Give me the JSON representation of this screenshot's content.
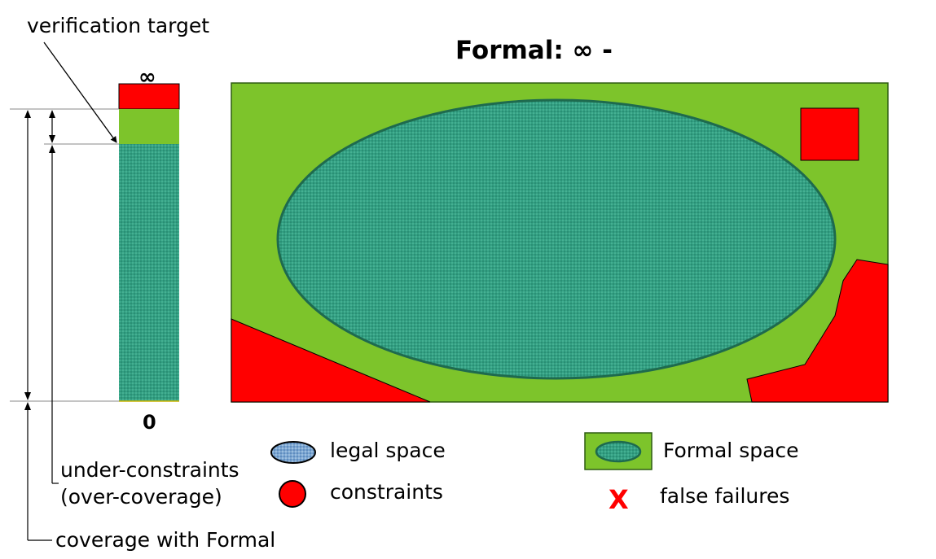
{
  "title": "Formal: ∞ -",
  "bar": {
    "top_label": "∞",
    "bottom_label": "0"
  },
  "annotations": {
    "verification_target": "verification target",
    "under_constraints_line1": "under-constraints",
    "under_constraints_line2": "(over-coverage)",
    "coverage_with_formal": "coverage with Formal"
  },
  "legend": {
    "legal_space": "legal space",
    "constraints": "constraints",
    "formal_space": "Formal space",
    "false_failures_mark": "X",
    "false_failures": "false failures"
  },
  "colors": {
    "green": "#7dc42b",
    "red": "#ff0000",
    "teal": "#33a083",
    "teal_dark": "#1e6a4e",
    "legal_blue": "#6e9cc8",
    "x_red": "#ff0000"
  }
}
